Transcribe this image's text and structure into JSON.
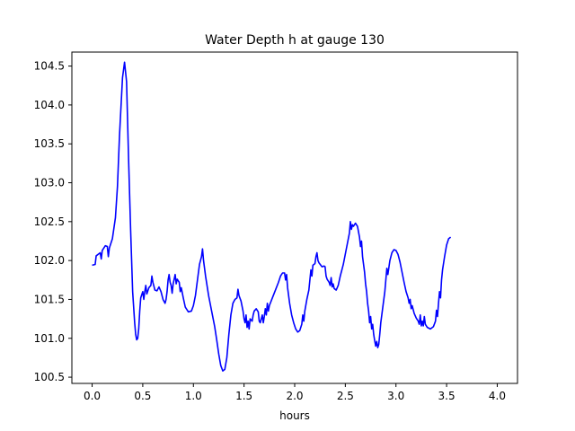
{
  "chart_data": {
    "type": "line",
    "title": "Water Depth h at gauge 130",
    "xlabel": "hours",
    "ylabel": "",
    "xlim": [
      -0.2,
      4.2
    ],
    "ylim": [
      100.42,
      104.68
    ],
    "xticks": [
      0.0,
      0.5,
      1.0,
      1.5,
      2.0,
      2.5,
      3.0,
      3.5,
      4.0
    ],
    "xtick_labels": [
      "0.0",
      "0.5",
      "1.0",
      "1.5",
      "2.0",
      "2.5",
      "3.0",
      "3.5",
      "4.0"
    ],
    "yticks": [
      100.5,
      101.0,
      101.5,
      102.0,
      102.5,
      103.0,
      103.5,
      104.0,
      104.5
    ],
    "ytick_labels": [
      "100.5",
      "101.0",
      "101.5",
      "102.0",
      "102.5",
      "103.0",
      "103.5",
      "104.0",
      "104.5"
    ],
    "grid": false,
    "series": [
      {
        "color": "#0000ff",
        "points": [
          [
            0.0,
            101.94
          ],
          [
            0.03,
            101.95
          ],
          [
            0.04,
            102.06
          ],
          [
            0.08,
            102.1
          ],
          [
            0.09,
            102.02
          ],
          [
            0.1,
            102.13
          ],
          [
            0.13,
            102.19
          ],
          [
            0.15,
            102.18
          ],
          [
            0.16,
            102.05
          ],
          [
            0.17,
            102.16
          ],
          [
            0.2,
            102.28
          ],
          [
            0.23,
            102.55
          ],
          [
            0.25,
            102.95
          ],
          [
            0.27,
            103.6
          ],
          [
            0.3,
            104.35
          ],
          [
            0.32,
            104.55
          ],
          [
            0.34,
            104.3
          ],
          [
            0.36,
            103.3
          ],
          [
            0.38,
            102.4
          ],
          [
            0.4,
            101.6
          ],
          [
            0.42,
            101.2
          ],
          [
            0.43,
            101.05
          ],
          [
            0.44,
            100.98
          ],
          [
            0.45,
            101.0
          ],
          [
            0.46,
            101.12
          ],
          [
            0.47,
            101.35
          ],
          [
            0.48,
            101.52
          ],
          [
            0.5,
            101.6
          ],
          [
            0.51,
            101.5
          ],
          [
            0.52,
            101.6
          ],
          [
            0.53,
            101.68
          ],
          [
            0.54,
            101.57
          ],
          [
            0.56,
            101.65
          ],
          [
            0.58,
            101.68
          ],
          [
            0.59,
            101.8
          ],
          [
            0.6,
            101.72
          ],
          [
            0.62,
            101.62
          ],
          [
            0.64,
            101.61
          ],
          [
            0.66,
            101.66
          ],
          [
            0.68,
            101.6
          ],
          [
            0.7,
            101.5
          ],
          [
            0.72,
            101.45
          ],
          [
            0.73,
            101.5
          ],
          [
            0.74,
            101.6
          ],
          [
            0.75,
            101.75
          ],
          [
            0.76,
            101.82
          ],
          [
            0.77,
            101.72
          ],
          [
            0.78,
            101.68
          ],
          [
            0.79,
            101.58
          ],
          [
            0.8,
            101.7
          ],
          [
            0.82,
            101.82
          ],
          [
            0.83,
            101.7
          ],
          [
            0.84,
            101.76
          ],
          [
            0.86,
            101.72
          ],
          [
            0.87,
            101.6
          ],
          [
            0.88,
            101.65
          ],
          [
            0.9,
            101.52
          ],
          [
            0.92,
            101.4
          ],
          [
            0.95,
            101.34
          ],
          [
            0.98,
            101.35
          ],
          [
            1.0,
            101.42
          ],
          [
            1.02,
            101.55
          ],
          [
            1.04,
            101.75
          ],
          [
            1.06,
            101.95
          ],
          [
            1.08,
            102.05
          ],
          [
            1.09,
            102.15
          ],
          [
            1.1,
            102.0
          ],
          [
            1.12,
            101.8
          ],
          [
            1.15,
            101.55
          ],
          [
            1.18,
            101.35
          ],
          [
            1.21,
            101.15
          ],
          [
            1.23,
            100.98
          ],
          [
            1.25,
            100.8
          ],
          [
            1.27,
            100.65
          ],
          [
            1.29,
            100.58
          ],
          [
            1.31,
            100.6
          ],
          [
            1.33,
            100.75
          ],
          [
            1.35,
            101.05
          ],
          [
            1.37,
            101.3
          ],
          [
            1.39,
            101.45
          ],
          [
            1.41,
            101.5
          ],
          [
            1.43,
            101.52
          ],
          [
            1.44,
            101.63
          ],
          [
            1.45,
            101.55
          ],
          [
            1.47,
            101.48
          ],
          [
            1.49,
            101.35
          ],
          [
            1.5,
            101.25
          ],
          [
            1.51,
            101.2
          ],
          [
            1.52,
            101.3
          ],
          [
            1.53,
            101.14
          ],
          [
            1.54,
            101.22
          ],
          [
            1.55,
            101.12
          ],
          [
            1.56,
            101.25
          ],
          [
            1.58,
            101.22
          ],
          [
            1.59,
            101.3
          ],
          [
            1.6,
            101.35
          ],
          [
            1.62,
            101.38
          ],
          [
            1.64,
            101.34
          ],
          [
            1.65,
            101.22
          ],
          [
            1.66,
            101.2
          ],
          [
            1.68,
            101.3
          ],
          [
            1.69,
            101.2
          ],
          [
            1.7,
            101.28
          ],
          [
            1.71,
            101.38
          ],
          [
            1.72,
            101.3
          ],
          [
            1.73,
            101.45
          ],
          [
            1.74,
            101.35
          ],
          [
            1.75,
            101.42
          ],
          [
            1.78,
            101.52
          ],
          [
            1.81,
            101.62
          ],
          [
            1.84,
            101.72
          ],
          [
            1.86,
            101.8
          ],
          [
            1.88,
            101.84
          ],
          [
            1.9,
            101.84
          ],
          [
            1.91,
            101.75
          ],
          [
            1.92,
            101.82
          ],
          [
            1.93,
            101.65
          ],
          [
            1.95,
            101.45
          ],
          [
            1.97,
            101.3
          ],
          [
            1.99,
            101.2
          ],
          [
            2.01,
            101.12
          ],
          [
            2.03,
            101.08
          ],
          [
            2.05,
            101.1
          ],
          [
            2.07,
            101.18
          ],
          [
            2.08,
            101.3
          ],
          [
            2.09,
            101.22
          ],
          [
            2.1,
            101.35
          ],
          [
            2.12,
            101.5
          ],
          [
            2.14,
            101.62
          ],
          [
            2.15,
            101.75
          ],
          [
            2.16,
            101.88
          ],
          [
            2.17,
            101.8
          ],
          [
            2.18,
            101.94
          ],
          [
            2.2,
            101.96
          ],
          [
            2.21,
            102.05
          ],
          [
            2.22,
            102.1
          ],
          [
            2.23,
            102.0
          ],
          [
            2.24,
            101.97
          ],
          [
            2.27,
            101.92
          ],
          [
            2.29,
            101.93
          ],
          [
            2.3,
            101.92
          ],
          [
            2.31,
            101.8
          ],
          [
            2.32,
            101.76
          ],
          [
            2.34,
            101.72
          ],
          [
            2.35,
            101.68
          ],
          [
            2.36,
            101.78
          ],
          [
            2.37,
            101.66
          ],
          [
            2.38,
            101.7
          ],
          [
            2.39,
            101.64
          ],
          [
            2.41,
            101.62
          ],
          [
            2.43,
            101.68
          ],
          [
            2.45,
            101.8
          ],
          [
            2.48,
            101.95
          ],
          [
            2.51,
            102.15
          ],
          [
            2.54,
            102.35
          ],
          [
            2.55,
            102.5
          ],
          [
            2.56,
            102.4
          ],
          [
            2.57,
            102.46
          ],
          [
            2.58,
            102.44
          ],
          [
            2.6,
            102.48
          ],
          [
            2.62,
            102.44
          ],
          [
            2.64,
            102.3
          ],
          [
            2.65,
            102.18
          ],
          [
            2.66,
            102.25
          ],
          [
            2.67,
            102.05
          ],
          [
            2.69,
            101.85
          ],
          [
            2.7,
            101.7
          ],
          [
            2.71,
            101.6
          ],
          [
            2.72,
            101.45
          ],
          [
            2.73,
            101.35
          ],
          [
            2.74,
            101.2
          ],
          [
            2.75,
            101.28
          ],
          [
            2.76,
            101.12
          ],
          [
            2.77,
            101.18
          ],
          [
            2.78,
            101.05
          ],
          [
            2.79,
            100.97
          ],
          [
            2.8,
            100.9
          ],
          [
            2.81,
            100.96
          ],
          [
            2.82,
            100.88
          ],
          [
            2.83,
            100.92
          ],
          [
            2.84,
            101.05
          ],
          [
            2.85,
            101.2
          ],
          [
            2.87,
            101.4
          ],
          [
            2.89,
            101.6
          ],
          [
            2.9,
            101.75
          ],
          [
            2.91,
            101.9
          ],
          [
            2.92,
            101.82
          ],
          [
            2.94,
            102.0
          ],
          [
            2.96,
            102.1
          ],
          [
            2.98,
            102.14
          ],
          [
            3.0,
            102.13
          ],
          [
            3.02,
            102.08
          ],
          [
            3.04,
            101.98
          ],
          [
            3.06,
            101.85
          ],
          [
            3.08,
            101.72
          ],
          [
            3.1,
            101.6
          ],
          [
            3.12,
            101.52
          ],
          [
            3.13,
            101.45
          ],
          [
            3.14,
            101.5
          ],
          [
            3.15,
            101.38
          ],
          [
            3.16,
            101.42
          ],
          [
            3.18,
            101.32
          ],
          [
            3.2,
            101.26
          ],
          [
            3.22,
            101.22
          ],
          [
            3.23,
            101.18
          ],
          [
            3.24,
            101.3
          ],
          [
            3.25,
            101.16
          ],
          [
            3.26,
            101.22
          ],
          [
            3.27,
            101.16
          ],
          [
            3.28,
            101.28
          ],
          [
            3.29,
            101.18
          ],
          [
            3.31,
            101.14
          ],
          [
            3.34,
            101.12
          ],
          [
            3.37,
            101.15
          ],
          [
            3.39,
            101.22
          ],
          [
            3.4,
            101.36
          ],
          [
            3.41,
            101.28
          ],
          [
            3.42,
            101.45
          ],
          [
            3.43,
            101.6
          ],
          [
            3.44,
            101.52
          ],
          [
            3.45,
            101.75
          ],
          [
            3.46,
            101.88
          ],
          [
            3.48,
            102.05
          ],
          [
            3.5,
            102.2
          ],
          [
            3.52,
            102.28
          ],
          [
            3.54,
            102.3
          ]
        ]
      }
    ]
  }
}
